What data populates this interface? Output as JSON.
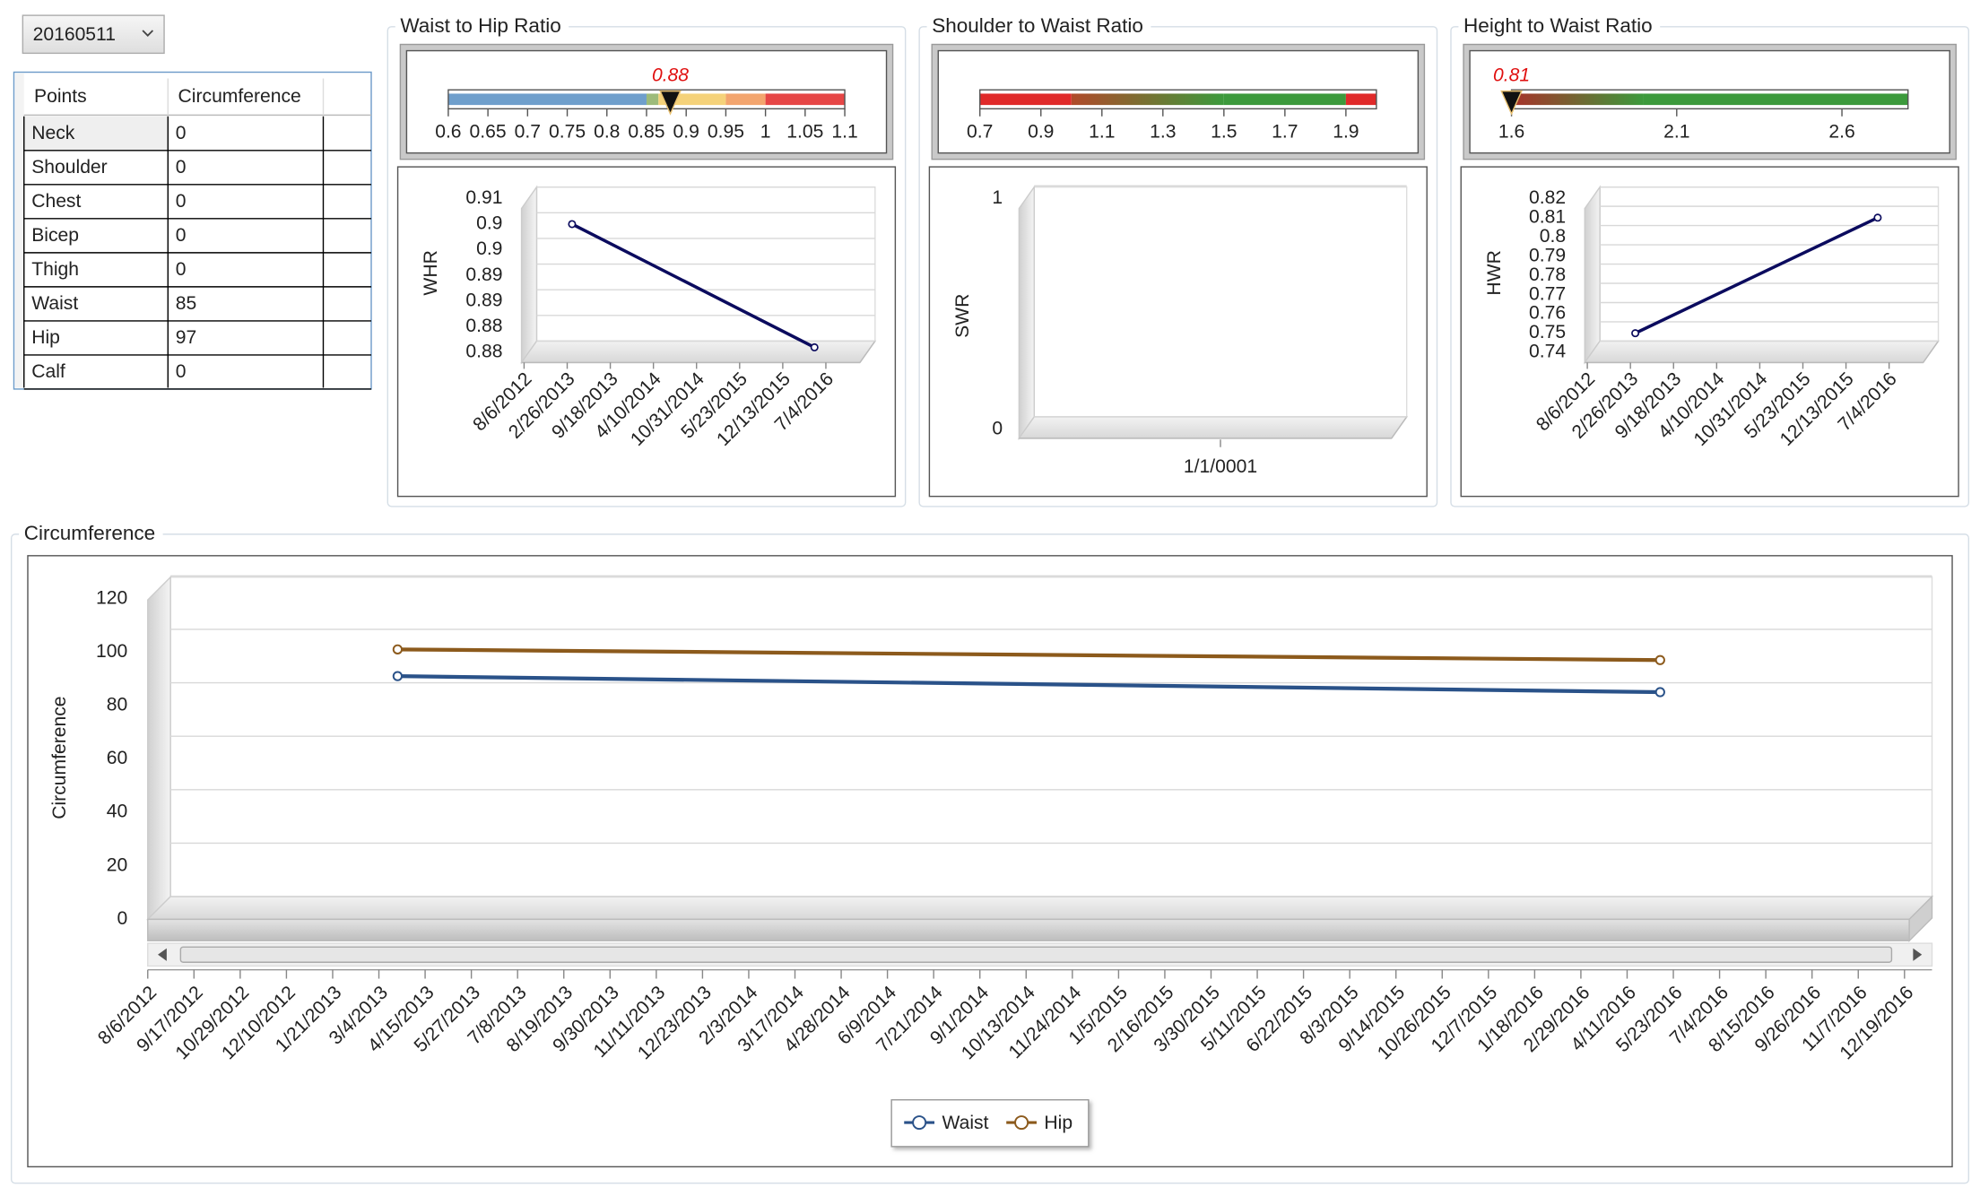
{
  "dropdown": {
    "value": "20160511"
  },
  "table": {
    "headers": [
      "Points",
      "Circumference"
    ],
    "rows": [
      [
        "Neck",
        0
      ],
      [
        "Shoulder",
        0
      ],
      [
        "Chest",
        0
      ],
      [
        "Bicep",
        0
      ],
      [
        "Thigh",
        0
      ],
      [
        "Waist",
        85
      ],
      [
        "Hip",
        97
      ],
      [
        "Calf",
        0
      ]
    ]
  },
  "ratio_panels": [
    {
      "title": "Waist to Hip Ratio",
      "gauge": {
        "min": 0.6,
        "max": 1.1,
        "value": 0.88,
        "ticks": [
          0.6,
          0.65,
          0.7,
          0.75,
          0.8,
          0.85,
          0.9,
          0.95,
          1,
          1.05,
          1.1
        ],
        "bands": [
          {
            "from": 0.6,
            "to": 0.85,
            "color": "#6f9fcc"
          },
          {
            "from": 0.85,
            "to": 0.865,
            "color": "#9dbb7a"
          },
          {
            "from": 0.865,
            "to": 0.95,
            "color": "#f5d27a"
          },
          {
            "from": 0.95,
            "to": 1,
            "color": "#f3a56e"
          },
          {
            "from": 1,
            "to": 1.1,
            "color": "#e64646"
          }
        ]
      },
      "chart_data": {
        "type": "line",
        "ylabel": "WHR",
        "x": [
          "3/21/2013",
          "5/11/2016"
        ],
        "values": [
          0.905,
          0.881
        ],
        "color": "#0b0b5e",
        "xlim": [
          "6/25/2012",
          "2/4/2017"
        ],
        "xticks": [
          "8/6/2012",
          "2/26/2013",
          "9/18/2013",
          "4/10/2014",
          "10/31/2014",
          "5/23/2015",
          "12/13/2015",
          "7/4/2016"
        ],
        "ylim": [
          0.88,
          0.91
        ],
        "yticks": [
          {
            "value": 0.88,
            "label": "0.88"
          },
          {
            "value": 0.885,
            "label": "0.88"
          },
          {
            "value": 0.89,
            "label": "0.89"
          },
          {
            "value": 0.895,
            "label": "0.89"
          },
          {
            "value": 0.9,
            "label": "0.9"
          },
          {
            "value": 0.905,
            "label": "0.9"
          },
          {
            "value": 0.91,
            "label": "0.91"
          }
        ],
        "grid": true
      }
    },
    {
      "title": "Shoulder to Waist Ratio",
      "gauge": {
        "min": 0.7,
        "max": 2.0,
        "ticks": [
          0.7,
          0.9,
          1.1,
          1.3,
          1.5,
          1.7,
          1.9
        ],
        "bands": [
          {
            "from": 0.7,
            "to": 1.0,
            "color": "#e02a2a"
          },
          {
            "from": 1.0,
            "to": 1.5,
            "color": "#b04a2a",
            "end_color": "#3c9a3c"
          },
          {
            "from": 1.5,
            "to": 1.9,
            "color": "#3c9a3c"
          },
          {
            "from": 1.9,
            "to": 2.0,
            "color": "#e02a2a"
          }
        ]
      },
      "chart_data": {
        "type": "line",
        "ylabel": "SWR",
        "categories": [
          "1/1/0001"
        ],
        "values": [
          null
        ],
        "color": "#0b0b5e",
        "ylim": [
          0,
          1
        ],
        "yticks": [
          0,
          1
        ],
        "grid": true
      }
    },
    {
      "title": "Height to Waist Ratio",
      "gauge": {
        "min": 1.6,
        "max": 2.8,
        "value": 0.81,
        "ticks": [
          1.6,
          2.1,
          2.6
        ],
        "bands": [
          {
            "from": 1.6,
            "to": 2.0,
            "color": "#a8322a",
            "end_color": "#3c9a3c"
          },
          {
            "from": 2.0,
            "to": 2.8,
            "color": "#3c9a3c"
          }
        ]
      },
      "chart_data": {
        "type": "line",
        "ylabel": "HWR",
        "x": [
          "3/21/2013",
          "5/11/2016"
        ],
        "values": [
          0.75,
          0.81
        ],
        "color": "#0b0b5e",
        "xlim": [
          "6/25/2012",
          "2/4/2017"
        ],
        "xticks": [
          "8/6/2012",
          "2/26/2013",
          "9/18/2013",
          "4/10/2014",
          "10/31/2014",
          "5/23/2015",
          "12/13/2015",
          "7/4/2016"
        ],
        "ylim": [
          0.74,
          0.82
        ],
        "yticks": [
          0.74,
          0.75,
          0.76,
          0.77,
          0.78,
          0.79,
          0.8,
          0.81,
          0.82
        ],
        "grid": true
      }
    }
  ],
  "circumference": {
    "title": "Circumference",
    "chart_data": {
      "type": "line",
      "ylabel": "Circumference",
      "x": [
        "3/21/2013",
        "5/11/2016"
      ],
      "series": [
        {
          "name": "Waist",
          "color": "#2a5289",
          "values": [
            91,
            85
          ]
        },
        {
          "name": "Hip",
          "color": "#8c5a1c",
          "values": [
            101,
            97
          ]
        }
      ],
      "xlim": [
        "8/6/2012",
        "1/13/2017"
      ],
      "xticks": [
        "8/6/2012",
        "9/17/2012",
        "10/29/2012",
        "12/10/2012",
        "1/21/2013",
        "3/4/2013",
        "4/15/2013",
        "5/27/2013",
        "7/8/2013",
        "8/19/2013",
        "9/30/2013",
        "11/11/2013",
        "12/23/2013",
        "2/3/2014",
        "3/17/2014",
        "4/28/2014",
        "6/9/2014",
        "7/21/2014",
        "9/1/2014",
        "10/13/2014",
        "11/24/2014",
        "1/5/2015",
        "2/16/2015",
        "3/30/2015",
        "5/11/2015",
        "6/22/2015",
        "8/3/2015",
        "9/14/2015",
        "10/26/2015",
        "12/7/2015",
        "1/18/2016",
        "2/29/2016",
        "4/11/2016",
        "5/23/2016",
        "7/4/2016",
        "8/15/2016",
        "9/26/2016",
        "11/7/2016",
        "12/19/2016"
      ],
      "ylim": [
        0,
        120
      ],
      "yticks": [
        0,
        20,
        40,
        60,
        80,
        100,
        120
      ],
      "grid": true,
      "legend": "bottom"
    }
  }
}
